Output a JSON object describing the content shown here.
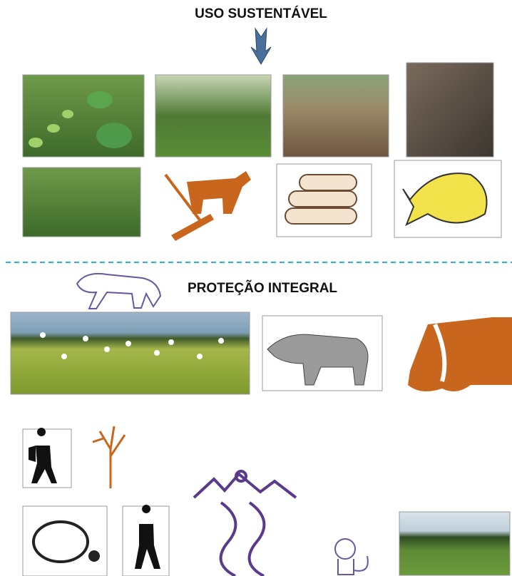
{
  "sections": [
    {
      "title": "USO SUSTENTÁVEL"
    },
    {
      "title": "PROTEÇÃO INTEGRAL"
    }
  ]
}
